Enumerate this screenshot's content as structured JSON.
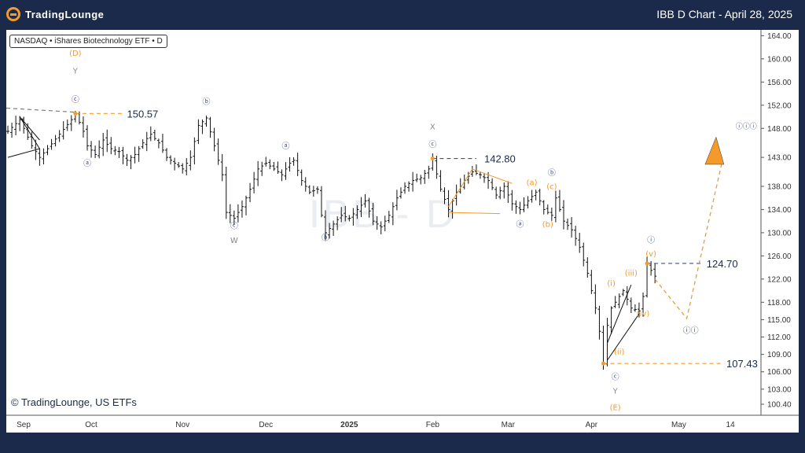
{
  "header": {
    "brand": "TradingLounge",
    "chart_title": "IBB D Chart - April 28, 2025"
  },
  "symbol_label": "NASDAQ • iShares Biotechnology ETF • D",
  "watermark": "IBB - D",
  "copyright": "© TradingLounge, US ETFs",
  "colors": {
    "orange": "#f39a2b",
    "navy": "#3d4f8a",
    "gray": "#888888",
    "dark": "#1b2a4a"
  },
  "chart_data": {
    "type": "candlestick",
    "title": "IBB D Chart - April 28, 2025",
    "ylim": [
      98.5,
      165
    ],
    "y_ticks": [
      "164.00",
      "160.00",
      "156.00",
      "152.00",
      "148.00",
      "143.00",
      "138.00",
      "134.00",
      "130.00",
      "126.00",
      "122.00",
      "118.00",
      "115.00",
      "112.00",
      "109.00",
      "106.00",
      "103.00",
      "100.40"
    ],
    "x_labels": [
      {
        "label": "Sep",
        "day": 0
      },
      {
        "label": "Oct",
        "day": 21
      },
      {
        "label": "Nov",
        "day": 44
      },
      {
        "label": "Dec",
        "day": 65
      },
      {
        "label": "2025",
        "day": 86
      },
      {
        "label": "Feb",
        "day": 107
      },
      {
        "label": "Mar",
        "day": 126
      },
      {
        "label": "Apr",
        "day": 147
      },
      {
        "label": "May",
        "day": 169
      },
      {
        "label": "14",
        "day": 182
      }
    ],
    "price_anchors": [
      [
        0,
        147.5
      ],
      [
        3,
        149.5
      ],
      [
        6,
        145
      ],
      [
        8,
        143
      ],
      [
        10,
        144.5
      ],
      [
        13,
        147
      ],
      [
        16,
        149.5
      ],
      [
        17,
        150.57
      ],
      [
        19,
        147.5
      ],
      [
        20,
        145
      ],
      [
        22,
        143.5
      ],
      [
        24,
        146
      ],
      [
        26,
        144.5
      ],
      [
        28,
        144
      ],
      [
        30,
        142.5
      ],
      [
        32,
        143.5
      ],
      [
        34,
        145.5
      ],
      [
        36,
        147
      ],
      [
        38,
        145.5
      ],
      [
        40,
        143
      ],
      [
        42,
        142
      ],
      [
        44,
        141
      ],
      [
        46,
        143
      ],
      [
        48,
        148.5
      ],
      [
        50,
        149.8
      ],
      [
        52,
        145
      ],
      [
        54,
        140
      ],
      [
        55,
        133.5
      ],
      [
        57,
        132.5
      ],
      [
        59,
        134.5
      ],
      [
        61,
        137.5
      ],
      [
        63,
        141
      ],
      [
        65,
        142
      ],
      [
        67,
        141
      ],
      [
        69,
        140
      ],
      [
        71,
        142
      ],
      [
        72,
        142.5
      ],
      [
        74,
        139
      ],
      [
        76,
        137
      ],
      [
        78,
        137.5
      ],
      [
        79,
        133
      ],
      [
        80,
        130
      ],
      [
        82,
        131.5
      ],
      [
        84,
        133
      ],
      [
        86,
        132.5
      ],
      [
        88,
        134
      ],
      [
        90,
        135.5
      ],
      [
        92,
        132
      ],
      [
        94,
        131
      ],
      [
        96,
        133
      ],
      [
        98,
        136
      ],
      [
        100,
        138
      ],
      [
        102,
        139
      ],
      [
        104,
        139.5
      ],
      [
        106,
        141
      ],
      [
        107,
        142.8
      ],
      [
        109,
        137.5
      ],
      [
        111,
        134
      ],
      [
        113,
        137
      ],
      [
        115,
        139
      ],
      [
        117,
        140.5
      ],
      [
        119,
        140
      ],
      [
        121,
        139
      ],
      [
        123,
        136.5
      ],
      [
        125,
        138
      ],
      [
        127,
        135
      ],
      [
        129,
        134
      ],
      [
        131,
        135.5
      ],
      [
        133,
        137
      ],
      [
        135,
        134
      ],
      [
        137,
        133
      ],
      [
        138,
        136
      ],
      [
        140,
        132
      ],
      [
        142,
        130.5
      ],
      [
        144,
        127.5
      ],
      [
        146,
        123
      ],
      [
        148,
        117
      ],
      [
        149,
        113
      ],
      [
        150,
        107.43
      ],
      [
        151,
        114
      ],
      [
        152,
        117
      ],
      [
        153,
        118
      ],
      [
        155,
        120
      ],
      [
        157,
        117
      ],
      [
        159,
        116.5
      ],
      [
        160,
        119
      ],
      [
        161,
        124.7
      ],
      [
        162,
        123.5
      ],
      [
        163,
        122.5
      ]
    ],
    "annotations": [
      {
        "text": "150.57",
        "price": 150.57,
        "color": "#1b2a4a"
      },
      {
        "text": "142.80",
        "price": 142.8,
        "color": "#1b2a4a"
      },
      {
        "text": "124.70",
        "price": 124.7,
        "color": "#1b2a4a"
      },
      {
        "text": "107.43",
        "price": 107.43,
        "color": "#1b2a4a"
      }
    ],
    "wave_labels": [
      {
        "text": "(D)",
        "color": "#f39a2b",
        "day": 17,
        "price": 160.5
      },
      {
        "text": "Y",
        "color": "#888888",
        "day": 17,
        "price": 157.5
      },
      {
        "text": "ⓒ",
        "color": "#3d4f8a",
        "day": 17,
        "price": 152.5
      },
      {
        "text": "ⓐ",
        "color": "#3d4f8a",
        "day": 20,
        "price": 141.5
      },
      {
        "text": "ⓑ",
        "color": "#3d4f8a",
        "day": 50,
        "price": 152.2
      },
      {
        "text": "ⓒ",
        "color": "#3d4f8a",
        "day": 57,
        "price": 130.7
      },
      {
        "text": "W",
        "color": "#888888",
        "day": 57,
        "price": 128.2
      },
      {
        "text": "ⓐ",
        "color": "#3d4f8a",
        "day": 70,
        "price": 144.5
      },
      {
        "text": "ⓑ",
        "color": "#3d4f8a",
        "day": 80,
        "price": 128.7
      },
      {
        "text": "X",
        "color": "#888888",
        "day": 107,
        "price": 147.8
      },
      {
        "text": "ⓒ",
        "color": "#3d4f8a",
        "day": 107,
        "price": 144.8
      },
      {
        "text": "(a)",
        "color": "#f39a2b",
        "day": 132,
        "price": 138.2
      },
      {
        "text": "(c)",
        "color": "#f39a2b",
        "day": 137,
        "price": 137.5
      },
      {
        "text": "ⓑ",
        "color": "#3d4f8a",
        "day": 137,
        "price": 139.9
      },
      {
        "text": "ⓐ",
        "color": "#3d4f8a",
        "day": 129,
        "price": 131
      },
      {
        "text": "(b)",
        "color": "#f39a2b",
        "day": 136,
        "price": 131
      },
      {
        "text": "ⓘ",
        "color": "#3d4f8a",
        "day": 162,
        "price": 128.3
      },
      {
        "text": "(v)",
        "color": "#f39a2b",
        "day": 162,
        "price": 125.9
      },
      {
        "text": "(iii)",
        "color": "#f39a2b",
        "day": 157,
        "price": 122.6
      },
      {
        "text": "(i)",
        "color": "#f39a2b",
        "day": 152,
        "price": 120.8
      },
      {
        "text": "(iv)",
        "color": "#f39a2b",
        "day": 160,
        "price": 115.6
      },
      {
        "text": "(ii)",
        "color": "#f39a2b",
        "day": 154,
        "price": 109
      },
      {
        "text": "ⓒ",
        "color": "#3d4f8a",
        "day": 153,
        "price": 104.7
      },
      {
        "text": "Y",
        "color": "#888888",
        "day": 153,
        "price": 102.2
      },
      {
        "text": "(E)",
        "color": "#f39a2b",
        "day": 153,
        "price": 99.4
      },
      {
        "text": "ⓘⓘ",
        "color": "#3d4f8a",
        "day": 172,
        "price": 112.7
      },
      {
        "text": "ⓘⓘⓘ",
        "color": "#3d4f8a",
        "day": 186,
        "price": 148
      }
    ]
  }
}
